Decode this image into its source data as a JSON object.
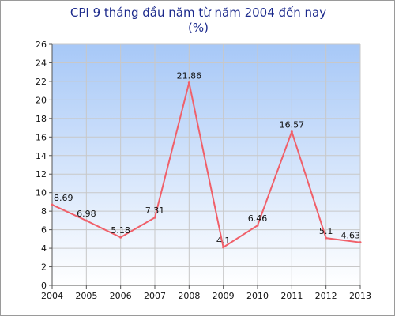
{
  "chart_data": {
    "type": "line",
    "title": "CPI 9 tháng đầu năm từ năm 2004 đến nay",
    "subtitle": "(%)",
    "xlabel": "",
    "ylabel": "",
    "categories": [
      "2004",
      "2005",
      "2006",
      "2007",
      "2008",
      "2009",
      "2010",
      "2011",
      "2012",
      "2013"
    ],
    "series": [
      {
        "values": [
          8.69,
          6.98,
          5.18,
          7.31,
          21.86,
          4.1,
          6.46,
          16.57,
          5.1,
          4.63
        ]
      }
    ],
    "data_labels": [
      "8.69",
      "6.98",
      "5.18",
      "7.31",
      "21.86",
      "4.1",
      "6.46",
      "16.57",
      "5.1",
      "4.63"
    ],
    "ylim": [
      0,
      26
    ],
    "y_ticks": [
      "0",
      "2",
      "4",
      "6",
      "8",
      "10",
      "12",
      "14",
      "16",
      "18",
      "20",
      "22",
      "24",
      "26"
    ],
    "grid": true,
    "legend": "none",
    "colors": {
      "line": "#f0606a",
      "plot_bg_top": "#a7c8f7",
      "plot_bg_bottom": "#ffffff",
      "grid": "#c8c8c8",
      "title": "#1c2a8c"
    }
  }
}
